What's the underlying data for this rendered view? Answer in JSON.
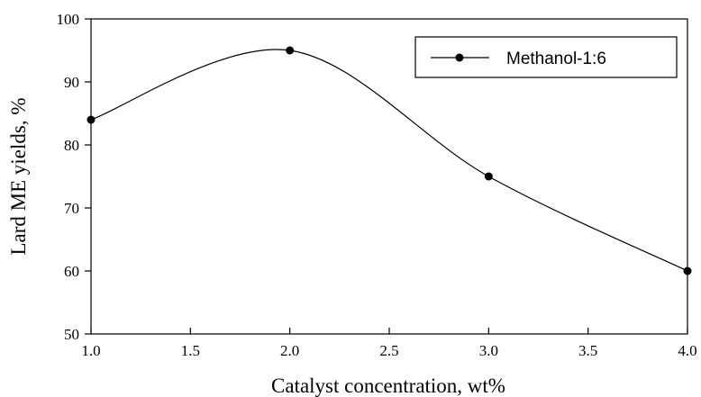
{
  "chart_data": {
    "type": "line",
    "xlabel": "Catalyst concentration, wt%",
    "ylabel": "Lard ME yields, %",
    "xlim": [
      1.0,
      4.0
    ],
    "ylim": [
      50,
      100
    ],
    "x_ticks": [
      "1.0",
      "1.5",
      "2.0",
      "2.5",
      "3.0",
      "3.5",
      "4.0"
    ],
    "y_ticks": [
      "50",
      "60",
      "70",
      "80",
      "90",
      "100"
    ],
    "grid": false,
    "legend_position": "top-right",
    "series": [
      {
        "name": "Methanol-1:6",
        "color": "#000000",
        "marker": "filled-circle",
        "smooth": true,
        "x": [
          1.0,
          2.0,
          3.0,
          4.0
        ],
        "y": [
          84,
          95,
          75,
          60
        ]
      }
    ]
  }
}
